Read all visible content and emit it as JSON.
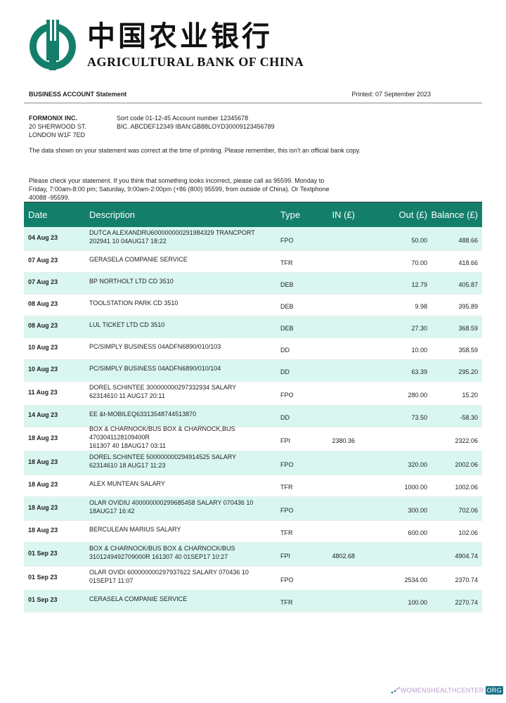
{
  "bank": {
    "name_cn": "中国农业银行",
    "name_en": "AGRICULTURAL BANK OF CHINA",
    "brand_color": "#137f6b"
  },
  "statement": {
    "title": "BUSINESS ACCOUNT Statement",
    "printed": "Printed: 07 September 2023"
  },
  "customer": {
    "name": "FORMONIX INC.",
    "address1": "20 SHERWOOD ST.",
    "address2": "LONDON W1F 7ED"
  },
  "account": {
    "line1": "Sort code 01-12-45  Account number 12345678",
    "line2": "BIC. ABCDEF12349   IBAN:GB88LOYD30009123456789"
  },
  "notes": {
    "accuracy": "The data shown on your statement was correct at the time of printing. Please remember, this isn't an official bank copy.",
    "contact": "Please check your statement. If you think that something looks incorrect, please call as 95599. Monday to Friday, 7:00am-8:00 pm; Saturday, 9:00am-2:00pm (+86 (800) 95599, from outside of China). Or Textphone 40088 -95599."
  },
  "table": {
    "headers": {
      "date": "Date",
      "description": "Description",
      "type": "Type",
      "in": "IN (£)",
      "out": "Out (£)",
      "balance": "Balance (£)"
    },
    "rows": [
      {
        "date": "04 Aug 23",
        "desc": [
          "DUTCA ALEXANDRU600000000291984329 TRANCPORT",
          "202941 10 04AUG17 18:22"
        ],
        "type": "FPO",
        "in": "",
        "out": "50.00",
        "balance": "488.66"
      },
      {
        "date": "07 Aug 23",
        "desc": [
          "GERASELA COMPANIE SERVICE"
        ],
        "type": "TFR",
        "in": "",
        "out": "70.00",
        "balance": "418.66"
      },
      {
        "date": "07 Aug 23",
        "desc": [
          "BP NORTHOLT LTD CD 3510"
        ],
        "type": "DEB",
        "in": "",
        "out": "12.79",
        "balance": "405.87"
      },
      {
        "date": "08 Aug 23",
        "desc": [
          "TOOLSTATION PARK CD 3510"
        ],
        "type": "DEB",
        "in": "",
        "out": "9.98",
        "balance": "395.89"
      },
      {
        "date": "08 Aug 23",
        "desc": [
          "LUL TICKET LTD CD 3510"
        ],
        "type": "DEB",
        "in": "",
        "out": "27.30",
        "balance": "368.59"
      },
      {
        "date": "10 Aug 23",
        "desc": [
          "PC/SIMPLY BUSINESS 04ADFN6890/010/103"
        ],
        "type": "DD",
        "in": "",
        "out": "10.00",
        "balance": "358.59"
      },
      {
        "date": "10 Aug 23",
        "desc": [
          "PC/SIMPLY BUSINESS 04ADFN6890/010/104"
        ],
        "type": "DD",
        "in": "",
        "out": "63.39",
        "balance": "295.20"
      },
      {
        "date": "11 Aug 23",
        "desc": [
          "DOREL SCHINTEE 300000000297332934 SALARY",
          "62314610 11 AUG17 20:11"
        ],
        "type": "FPO",
        "in": "",
        "out": "280.00",
        "balance": "15.20"
      },
      {
        "date": "14 Aug 23",
        "desc": [
          "EE &t-MOBILEQ63313548744513870"
        ],
        "type": "DD",
        "in": "",
        "out": "73.50",
        "balance": "-58.30"
      },
      {
        "date": "18 Aug 23",
        "desc": [
          "BOX & CHARNOCK/BUS BOX & CHARNOCK,BUS 4703041128109400R",
          "161307 40 18AUG17 03:11"
        ],
        "type": "FPI",
        "in": "2380.36",
        "out": "",
        "balance": "2322.06"
      },
      {
        "date": "18 Aug 23",
        "desc": [
          "DOREL SCHINTEE 500000000294914525 SALARY",
          "62314610 18 AUG17 11:23"
        ],
        "type": "FPO",
        "in": "",
        "out": "320.00",
        "balance": "2002.06"
      },
      {
        "date": "18 Aug 23",
        "desc": [
          "ALEX MUNTEAN SALARY"
        ],
        "type": "TFR",
        "in": "",
        "out": "1000.00",
        "balance": "1002.06"
      },
      {
        "date": "18 Aug 23",
        "desc": [
          "OLAR OVIDIU 400000000299685458 SALARY 070436 10",
          "18AUG17 16:42"
        ],
        "type": "FPO",
        "in": "",
        "out": "300.00",
        "balance": "702.06"
      },
      {
        "date": "18 Aug 23",
        "desc": [
          "BERCULEAN MARIUS SALARY"
        ],
        "type": "TFR",
        "in": "",
        "out": "600.00",
        "balance": "102.06"
      },
      {
        "date": "01 Sep 23",
        "desc": [
          "BOX & CHARNOCK/BUS BOX & CHARNOCK/BUS",
          "3101249492709000R 161307 40 01SEP17 10:27"
        ],
        "type": "FPI",
        "in": "4802.68",
        "out": "",
        "balance": "4904.74"
      },
      {
        "date": "01 Sep 23",
        "desc": [
          "OLAR OVIDI 600000000297937622 SALARY 070436 10",
          "01SEP17 11:07"
        ],
        "type": "FPO",
        "in": "",
        "out": "2534.00",
        "balance": "2370.74"
      },
      {
        "date": "01 Sep 23",
        "desc": [
          "CERASELA COMPANIE SERVICE"
        ],
        "type": "TFR",
        "in": "",
        "out": "100.00",
        "balance": "2270.74"
      }
    ]
  },
  "watermark": {
    "text": "WOMENSHEALTHCENTER",
    "suffix": "ORG"
  }
}
